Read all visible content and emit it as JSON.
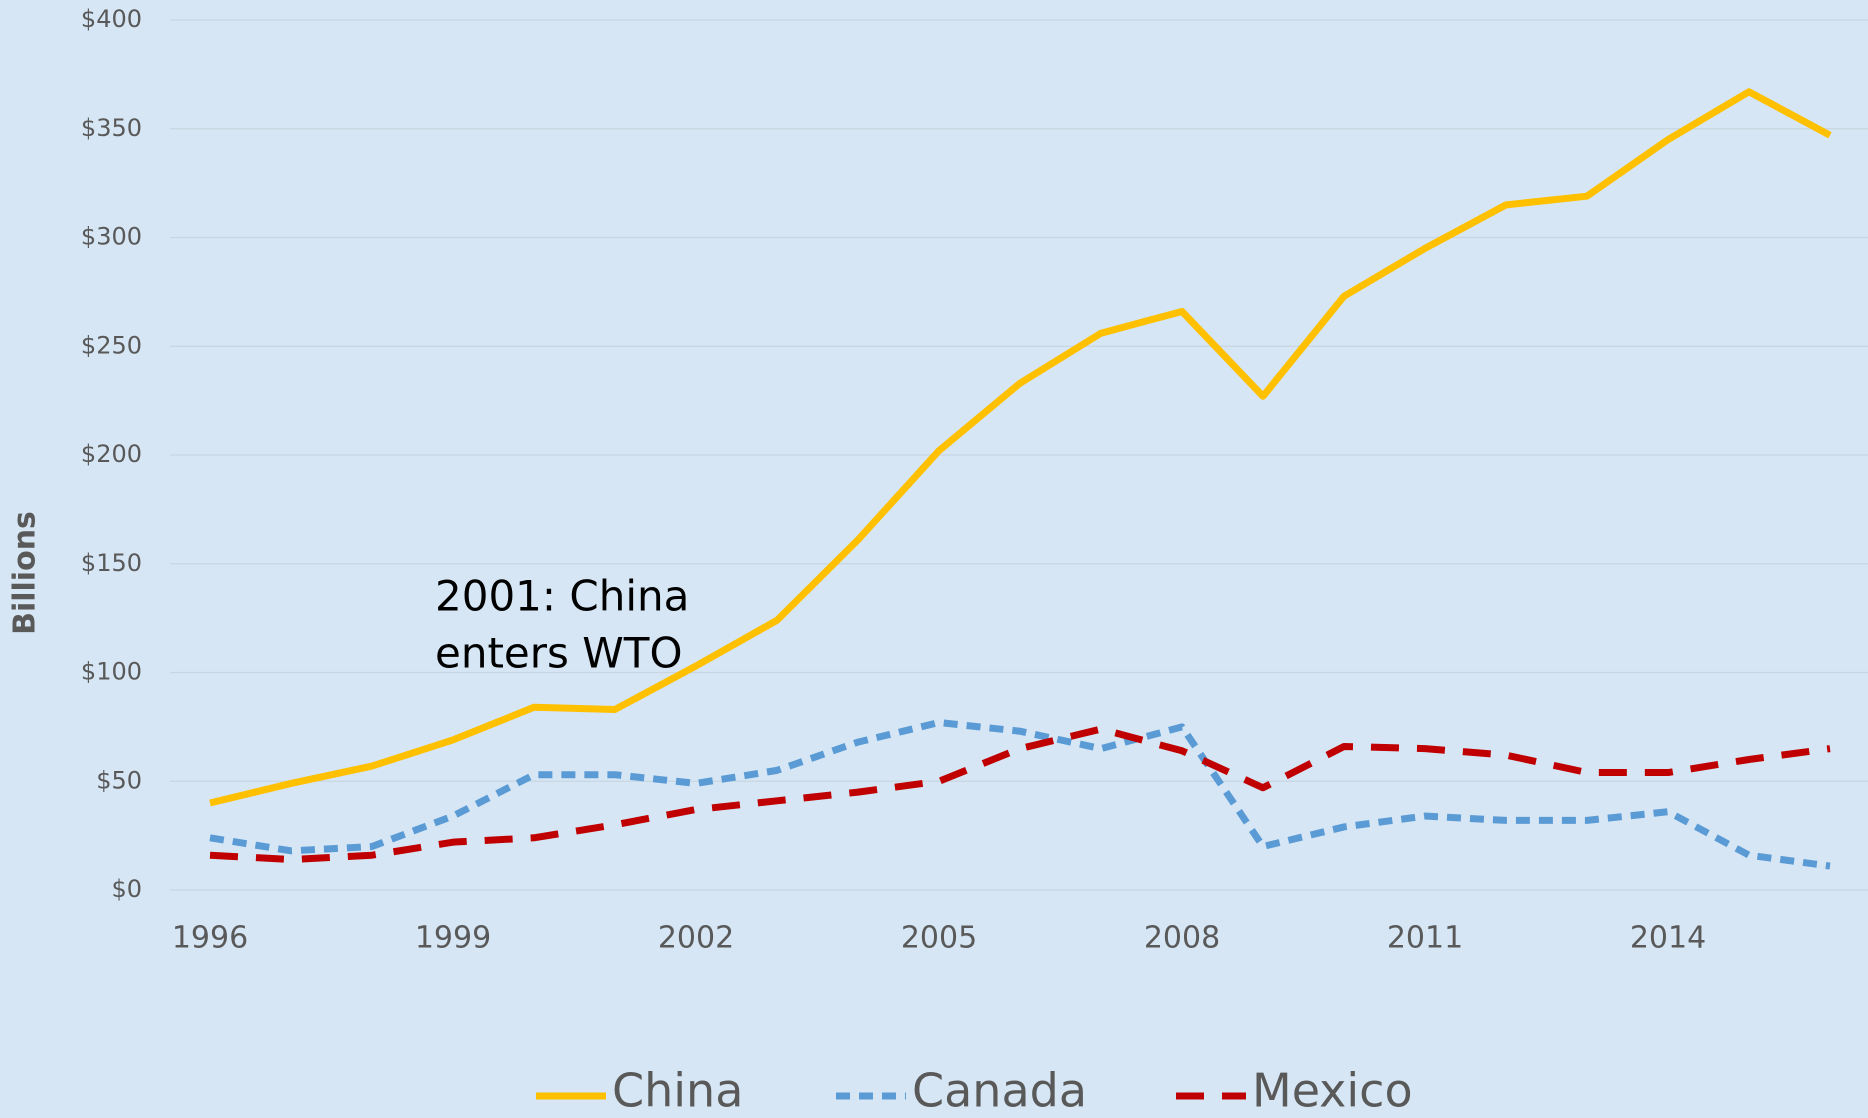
{
  "chart_data": {
    "type": "line",
    "y_axis_label": "Billions",
    "annotation": [
      "2001: China",
      "enters WTO"
    ],
    "x": [
      1996,
      1997,
      1998,
      1999,
      2000,
      2001,
      2002,
      2003,
      2004,
      2005,
      2006,
      2007,
      2008,
      2009,
      2010,
      2011,
      2012,
      2013,
      2014,
      2015,
      2016
    ],
    "xlim": [
      1996,
      2016
    ],
    "xticks": [
      1996,
      1999,
      2002,
      2005,
      2008,
      2011,
      2014
    ],
    "ylim": [
      0,
      400
    ],
    "yticks": [
      {
        "value": 0,
        "label": "$0"
      },
      {
        "value": 50,
        "label": "$50"
      },
      {
        "value": 100,
        "label": "$100"
      },
      {
        "value": 150,
        "label": "$150"
      },
      {
        "value": 200,
        "label": "$200"
      },
      {
        "value": 250,
        "label": "$250"
      },
      {
        "value": 300,
        "label": "$300"
      },
      {
        "value": 350,
        "label": "$350"
      },
      {
        "value": 400,
        "label": "$400"
      }
    ],
    "grid": true,
    "series": [
      {
        "name": "China",
        "color": "#ffc000",
        "values": [
          40,
          49,
          57,
          69,
          84,
          83,
          103,
          124,
          161,
          202,
          233,
          256,
          266,
          227,
          273,
          295,
          315,
          319,
          345,
          367,
          347
        ]
      },
      {
        "name": "Canada",
        "color": "#5b9bd5",
        "values": [
          24,
          18,
          20,
          34,
          53,
          53,
          49,
          55,
          68,
          77,
          73,
          65,
          75,
          20,
          29,
          34,
          32,
          32,
          36,
          16,
          11
        ]
      },
      {
        "name": "Mexico",
        "color": "#c00000",
        "values": [
          16,
          14,
          16,
          22,
          24,
          30,
          37,
          41,
          45,
          50,
          65,
          74,
          64,
          47,
          66,
          65,
          62,
          54,
          54,
          60,
          65
        ]
      }
    ]
  }
}
